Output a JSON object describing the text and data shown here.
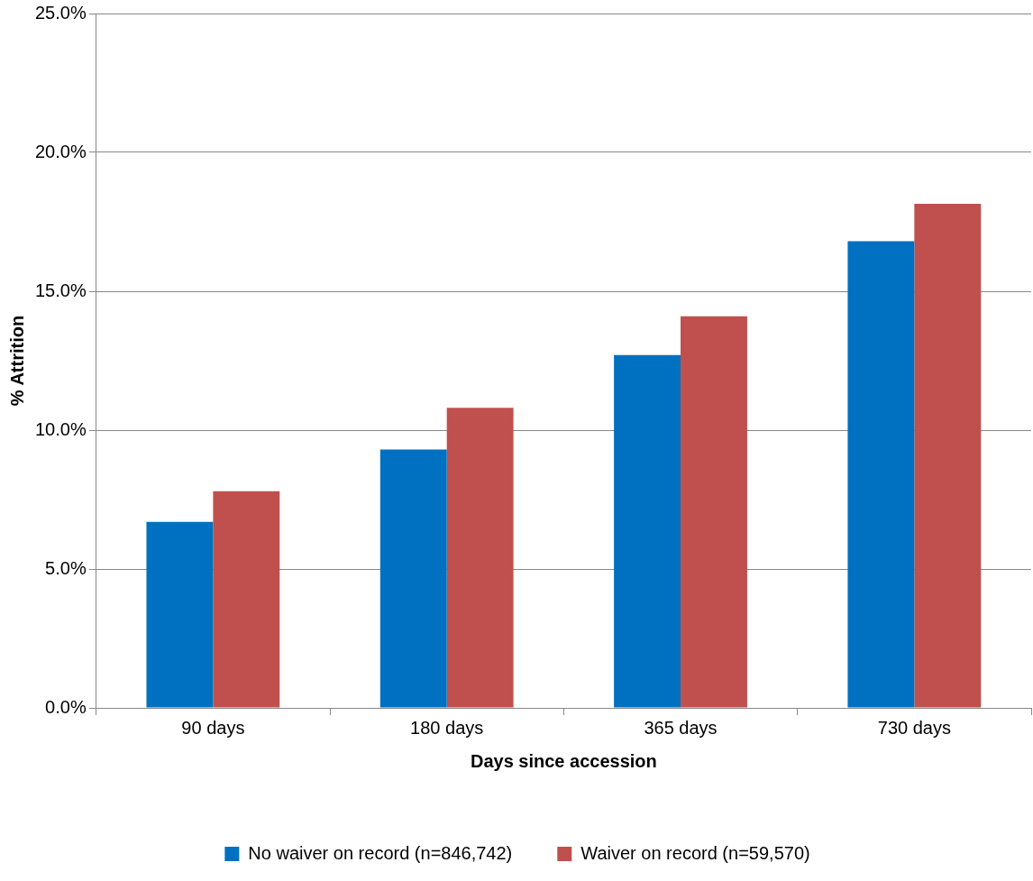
{
  "chart_data": {
    "type": "bar",
    "xlabel": "Days since accession",
    "ylabel": "% Attrition",
    "categories": [
      "90 days",
      "180 days",
      "365 days",
      "730 days"
    ],
    "series": [
      {
        "name": "No waiver on record (n=846,742)",
        "color": "#0070c0",
        "values": [
          6.7,
          9.3,
          12.7,
          16.8
        ]
      },
      {
        "name": "Waiver on record (n=59,570)",
        "color": "#c0504d",
        "values": [
          7.8,
          10.8,
          14.1,
          18.15
        ]
      }
    ],
    "ylim": [
      0,
      25
    ],
    "yticks": [
      {
        "value": 0,
        "label": "0.0%"
      },
      {
        "value": 5,
        "label": "5.0%"
      },
      {
        "value": 10,
        "label": "10.0%"
      },
      {
        "value": 15,
        "label": "15.0%"
      },
      {
        "value": 20,
        "label": "20.0%"
      },
      {
        "value": 25,
        "label": "25.0%"
      }
    ],
    "grid": "y",
    "legend": "bottom"
  }
}
